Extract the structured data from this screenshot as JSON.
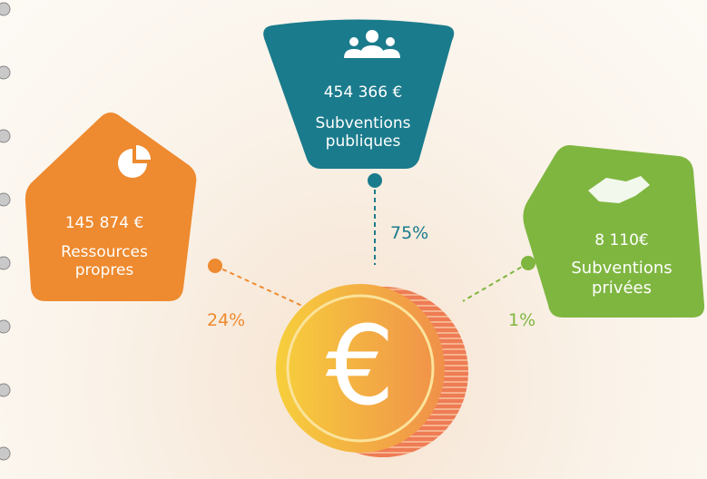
{
  "blocks": [
    {
      "amount": "454 366 €",
      "label": "Subventions publiques",
      "percent": "75%"
    },
    {
      "amount": "145 874 €",
      "label": "Ressources propres",
      "percent": "24%"
    },
    {
      "amount": "8 110€",
      "label": "Subventions privées",
      "percent": "1%"
    }
  ],
  "coin_symbol": "€"
}
